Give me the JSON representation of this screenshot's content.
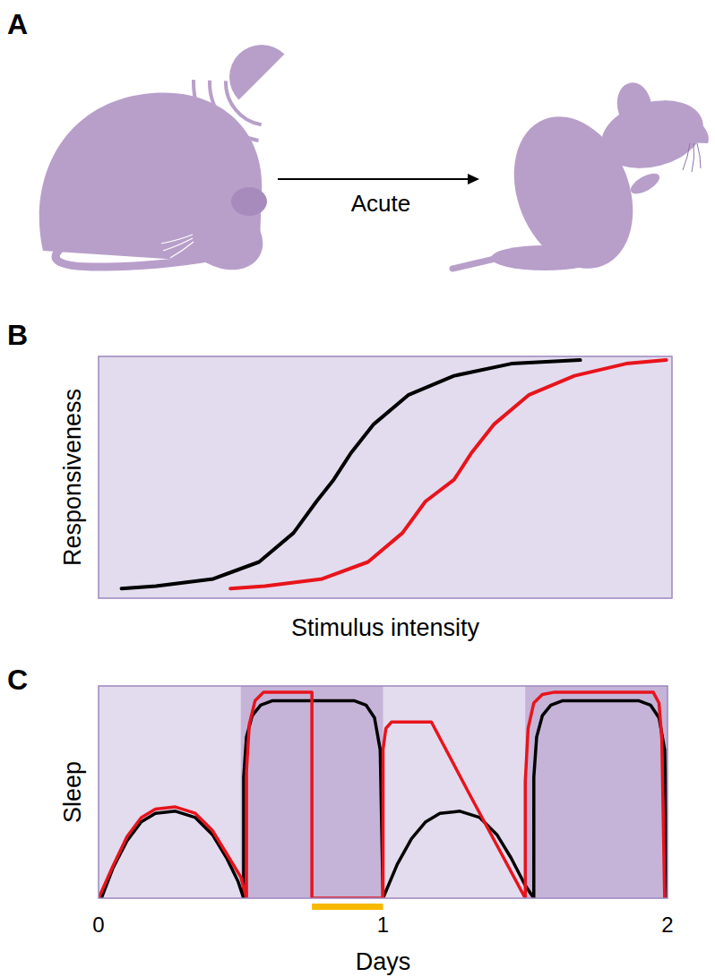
{
  "panel_a": {
    "label": "A",
    "arrow_label": "Acute"
  },
  "chart_data": [
    {
      "type": "line",
      "panel_label": "B",
      "x_label": "Stimulus intensity",
      "y_label": "Responsiveness",
      "xlim": [
        0,
        100
      ],
      "ylim": [
        0,
        100
      ],
      "tick_labels": false,
      "grid": false,
      "series": [
        {
          "color": "#000000",
          "x": [
            4,
            10,
            20,
            28,
            34,
            38,
            41,
            44,
            48,
            54,
            62,
            72,
            84
          ],
          "values": [
            4,
            5,
            8,
            15,
            27,
            40,
            49,
            60,
            72,
            84,
            92,
            97,
            98.5
          ]
        },
        {
          "color": "#e8141c",
          "x": [
            23,
            29,
            39,
            47,
            53,
            57,
            62,
            65,
            69,
            75,
            83,
            92,
            99
          ],
          "values": [
            4,
            5,
            8,
            15,
            27,
            40,
            49,
            60,
            72,
            84,
            92,
            97,
            98.5
          ]
        }
      ]
    },
    {
      "type": "line",
      "panel_label": "C",
      "x_label": "Days",
      "y_label": "Sleep",
      "xlim": [
        0,
        2
      ],
      "ylim": [
        0,
        100
      ],
      "xticks": [
        0,
        1,
        2
      ],
      "tick_labels": "x",
      "grid": false,
      "dark_periods": [
        [
          0.5,
          1
        ],
        [
          1.5,
          2
        ]
      ],
      "deprivation": [
        0.75,
        1
      ],
      "series": [
        {
          "color": "#000000",
          "x": [
            0.01,
            0.05,
            0.1,
            0.15,
            0.2,
            0.27,
            0.34,
            0.4,
            0.45,
            0.49,
            0.51,
            0.51,
            0.52,
            0.54,
            0.57,
            0.61,
            0.9,
            0.94,
            0.97,
            0.99,
            1.0,
            1.05,
            1.1,
            1.15,
            1.2,
            1.27,
            1.34,
            1.4,
            1.45,
            1.5,
            1.53,
            1.53,
            1.54,
            1.56,
            1.59,
            1.63,
            1.9,
            1.94,
            1.97,
            1.99,
            2.0
          ],
          "values": [
            0,
            14,
            27,
            36,
            40,
            41,
            38,
            30,
            19,
            8,
            0,
            57,
            76,
            86,
            91,
            93,
            93,
            91,
            85,
            70,
            0,
            16,
            28,
            36,
            40,
            41,
            38,
            30,
            19,
            6,
            0,
            57,
            76,
            86,
            91,
            93,
            93,
            91,
            85,
            70,
            0
          ]
        },
        {
          "color": "#e8141c",
          "x": [
            0.0,
            0.05,
            0.1,
            0.15,
            0.2,
            0.27,
            0.34,
            0.4,
            0.45,
            0.5,
            0.52,
            0.52,
            0.53,
            0.55,
            0.58,
            0.75,
            0.75,
            1.0,
            1.0,
            1.01,
            1.03,
            1.17,
            1.3,
            1.4,
            1.5,
            1.5,
            1.51,
            1.53,
            1.56,
            1.6,
            1.95,
            1.97,
            1.98,
            1.99
          ],
          "values": [
            0,
            15,
            29,
            38,
            42,
            43,
            40,
            32,
            21,
            10,
            0,
            60,
            82,
            93,
            97,
            97,
            0,
            0,
            70,
            80,
            83,
            83,
            50,
            25,
            0,
            55,
            80,
            92,
            96,
            97,
            97,
            92,
            75,
            0
          ]
        }
      ]
    }
  ]
}
